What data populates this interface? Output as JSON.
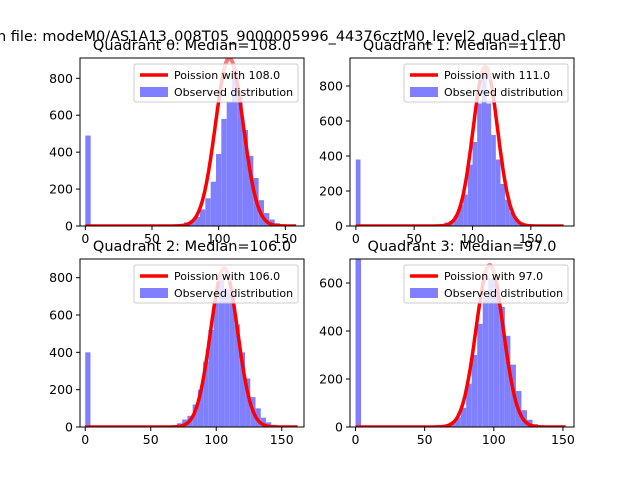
{
  "figure": {
    "suptitle": "n file: modeM0/AS1A13_008T05_9000005996_44376cztM0_level2_quad_clean",
    "colors": {
      "poisson": "#ff0000",
      "observed": "#8080ff",
      "poisson_peak": "#ff8080"
    }
  },
  "chart_data": [
    {
      "type": "bar",
      "title": "Quadrant 0: Median=108.0",
      "xlabel": "",
      "ylabel": "",
      "xlim": [
        -4,
        164
      ],
      "ylim": [
        0,
        910
      ],
      "xticks": [
        0,
        50,
        100,
        150
      ],
      "yticks": [
        0,
        200,
        400,
        600,
        800
      ],
      "legend_location": "top-right",
      "series": [
        {
          "name": "Poission with 108.0",
          "type": "line",
          "mean": 108.0,
          "x_range": [
            0,
            158
          ],
          "peak": 910
        },
        {
          "name": "Observed distribution",
          "type": "histogram",
          "x": [
            0,
            70,
            74,
            78,
            82,
            86,
            90,
            94,
            98,
            102,
            106,
            110,
            114,
            118,
            122,
            126,
            130,
            134,
            138,
            142,
            146,
            150,
            154
          ],
          "values": [
            490,
            10,
            20,
            30,
            50,
            90,
            150,
            240,
            390,
            580,
            670,
            850,
            700,
            520,
            380,
            260,
            140,
            70,
            35,
            15,
            8,
            4,
            2
          ],
          "bin_width": 4
        }
      ]
    },
    {
      "type": "bar",
      "title": "Quadrant 1: Median=111.0",
      "xlabel": "",
      "ylabel": "",
      "xlim": [
        -5,
        187
      ],
      "ylim": [
        0,
        960
      ],
      "xticks": [
        0,
        50,
        100,
        150
      ],
      "yticks": [
        0,
        200,
        400,
        600,
        800
      ],
      "legend_location": "top-right",
      "series": [
        {
          "name": "Poission with 111.0",
          "type": "line",
          "mean": 111.0,
          "x_range": [
            0,
            178
          ],
          "peak": 910
        },
        {
          "name": "Observed distribution",
          "type": "histogram",
          "x": [
            0,
            76,
            80,
            84,
            88,
            92,
            96,
            100,
            104,
            108,
            112,
            116,
            120,
            124,
            128,
            132,
            136,
            140,
            144,
            148,
            152,
            156
          ],
          "values": [
            380,
            20,
            30,
            60,
            120,
            180,
            350,
            480,
            700,
            900,
            700,
            520,
            380,
            240,
            150,
            80,
            40,
            20,
            10,
            5,
            3,
            2
          ],
          "bin_width": 4
        }
      ]
    },
    {
      "type": "bar",
      "title": "Quadrant 2: Median=106.0",
      "xlabel": "",
      "ylabel": "",
      "xlim": [
        -4,
        167
      ],
      "ylim": [
        0,
        900
      ],
      "xticks": [
        0,
        50,
        100,
        150
      ],
      "yticks": [
        0,
        200,
        400,
        600,
        800
      ],
      "legend_location": "top-right",
      "series": [
        {
          "name": "Poission with 106.0",
          "type": "line",
          "mean": 106.0,
          "x_range": [
            0,
            162
          ],
          "peak": 850
        },
        {
          "name": "Observed distribution",
          "type": "histogram",
          "x": [
            0,
            70,
            74,
            78,
            82,
            86,
            90,
            94,
            98,
            102,
            106,
            110,
            114,
            118,
            122,
            126,
            130,
            134,
            138,
            142,
            146,
            150
          ],
          "values": [
            400,
            20,
            40,
            60,
            120,
            200,
            350,
            520,
            680,
            790,
            740,
            710,
            550,
            400,
            260,
            160,
            100,
            50,
            25,
            12,
            6,
            3
          ],
          "bin_width": 4
        }
      ]
    },
    {
      "type": "bar",
      "title": "Quadrant 3: Median=97.0",
      "xlabel": "",
      "ylabel": "",
      "xlim": [
        -4,
        158
      ],
      "ylim": [
        0,
        700
      ],
      "xticks": [
        0,
        50,
        100,
        150
      ],
      "yticks": [
        0,
        200,
        400,
        600
      ],
      "legend_location": "top-right",
      "series": [
        {
          "name": "Poission with 97.0",
          "type": "line",
          "mean": 97.0,
          "x_range": [
            0,
            152
          ],
          "peak": 675
        },
        {
          "name": "Observed distribution",
          "type": "histogram",
          "x": [
            0,
            60,
            64,
            68,
            72,
            76,
            80,
            84,
            88,
            92,
            96,
            100,
            104,
            108,
            112,
            116,
            120,
            124,
            128,
            132,
            136
          ],
          "values": [
            700,
            5,
            10,
            20,
            40,
            80,
            180,
            300,
            430,
            540,
            620,
            600,
            500,
            380,
            260,
            150,
            70,
            30,
            12,
            5,
            2
          ],
          "bin_width": 4
        }
      ]
    }
  ]
}
